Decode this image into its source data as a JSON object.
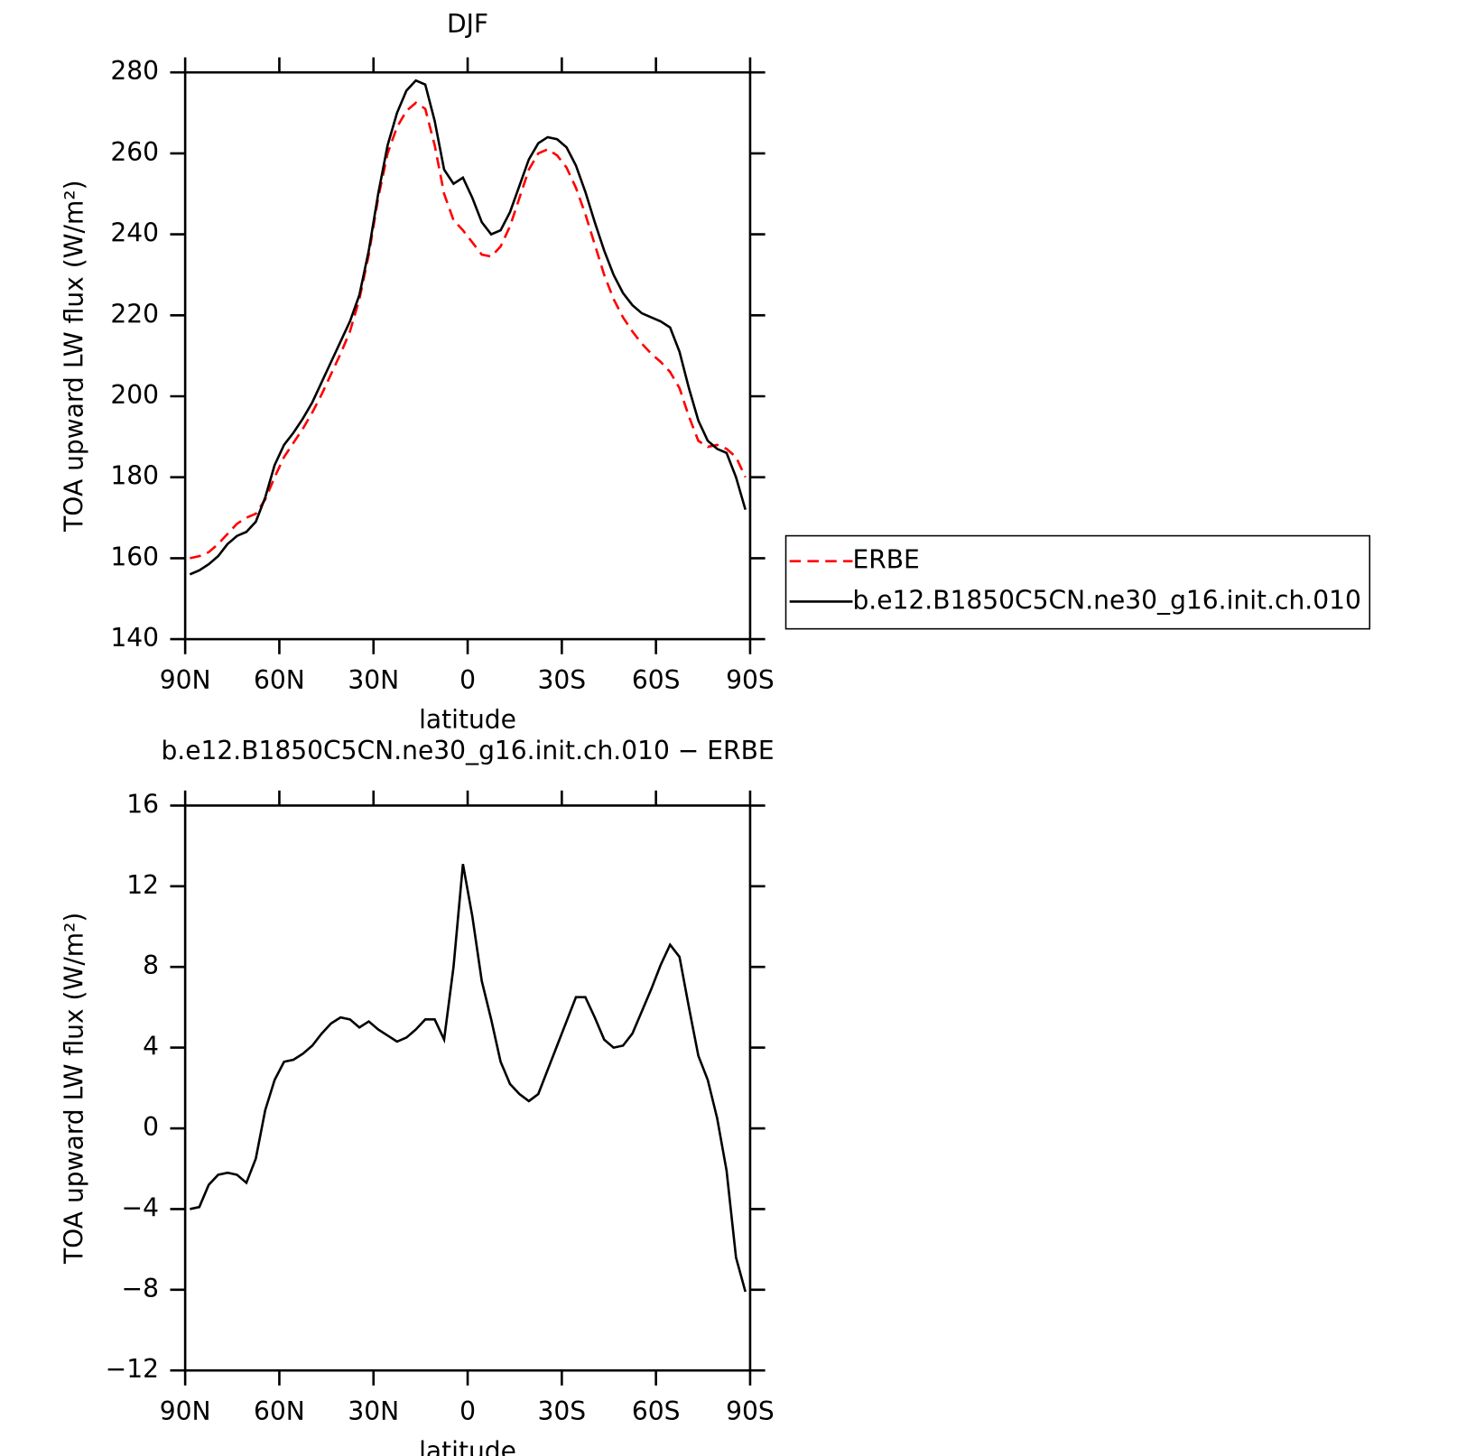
{
  "chart_data": [
    {
      "type": "line",
      "title": "DJF",
      "xlabel": "latitude",
      "ylabel": "TOA upward LW flux (W/m²)",
      "x": [
        88.5,
        85.5,
        82.5,
        79.5,
        76.5,
        73.5,
        70.5,
        67.5,
        64.5,
        61.5,
        58.5,
        55.5,
        52.5,
        49.5,
        46.5,
        43.5,
        40.5,
        37.5,
        34.5,
        31.5,
        28.5,
        25.5,
        22.5,
        19.5,
        16.5,
        13.5,
        10.5,
        7.5,
        4.5,
        1.5,
        -1.5,
        -4.5,
        -7.5,
        -10.5,
        -13.5,
        -16.5,
        -19.5,
        -22.5,
        -25.5,
        -28.5,
        -31.5,
        -34.5,
        -37.5,
        -40.5,
        -43.5,
        -46.5,
        -49.5,
        -52.5,
        -55.5,
        -58.5,
        -61.5,
        -64.5,
        -67.5,
        -70.5,
        -73.5,
        -76.5,
        -79.5,
        -82.5,
        -85.5,
        -88.5
      ],
      "series": [
        {
          "name": "ERBE",
          "color": "#ff0000",
          "linestyle": "dashed",
          "values": [
            160,
            160.5,
            161.5,
            163.5,
            166,
            168.5,
            170,
            171,
            174.5,
            180,
            185,
            188.5,
            192,
            196,
            200.5,
            205.5,
            210.5,
            216,
            224,
            235,
            249,
            260,
            266.5,
            270.5,
            272.5,
            271,
            262,
            250,
            243.5,
            241,
            238,
            235,
            234.5,
            237,
            242,
            249,
            256,
            260,
            261,
            259.5,
            256.5,
            251.5,
            245,
            237.5,
            230,
            224,
            219.5,
            216,
            213,
            210.5,
            208.5,
            206,
            202,
            195,
            189,
            187.5,
            188,
            187,
            185,
            180
          ]
        },
        {
          "name": "b.e12.B1850C5CN.ne30_g16.init.ch.010",
          "color": "#000000",
          "linestyle": "solid",
          "values": [
            156,
            157,
            158.5,
            160.5,
            163.5,
            165.5,
            166.5,
            169,
            175,
            183,
            188,
            191,
            194.5,
            198.5,
            203.5,
            208.5,
            213.5,
            218.5,
            225,
            236,
            250,
            262,
            270,
            275.5,
            278,
            277,
            268,
            256,
            252.5,
            254,
            249,
            243,
            240,
            241,
            245.5,
            252,
            258.5,
            262.5,
            264,
            263.5,
            261.5,
            257,
            250.5,
            243,
            236,
            230,
            225.5,
            222.5,
            220.5,
            219.5,
            218.5,
            217,
            211,
            202,
            194,
            189,
            187,
            186,
            180,
            172
          ]
        }
      ],
      "xlim": [
        90,
        -90
      ],
      "xticks": [
        {
          "value": 90,
          "label": "90N"
        },
        {
          "value": 60,
          "label": "60N"
        },
        {
          "value": 30,
          "label": "30N"
        },
        0,
        {
          "value": -30,
          "label": "30S"
        },
        {
          "value": -60,
          "label": "60S"
        },
        {
          "value": -90,
          "label": "90S"
        }
      ],
      "ylim": [
        140,
        280
      ],
      "yticks": [
        140,
        160,
        180,
        200,
        220,
        240,
        260,
        280
      ],
      "legend": "right"
    },
    {
      "type": "line",
      "title": "b.e12.B1850C5CN.ne30_g16.init.ch.010 − ERBE",
      "xlabel": "latitude",
      "ylabel": "TOA upward LW flux (W/m²)",
      "x": [
        88.5,
        85.5,
        82.5,
        79.5,
        76.5,
        73.5,
        70.5,
        67.5,
        64.5,
        61.5,
        58.5,
        55.5,
        52.5,
        49.5,
        46.5,
        43.5,
        40.5,
        37.5,
        34.5,
        31.5,
        28.5,
        25.5,
        22.5,
        19.5,
        16.5,
        13.5,
        10.5,
        7.5,
        4.5,
        1.5,
        -1.5,
        -4.5,
        -7.5,
        -10.5,
        -13.5,
        -16.5,
        -19.5,
        -22.5,
        -25.5,
        -28.5,
        -31.5,
        -34.5,
        -37.5,
        -40.5,
        -43.5,
        -46.5,
        -49.5,
        -52.5,
        -55.5,
        -58.5,
        -61.5,
        -64.5,
        -67.5,
        -70.5,
        -73.5,
        -76.5,
        -79.5,
        -82.5,
        -85.5,
        -88.5
      ],
      "series": [
        {
          "color": "#000000",
          "linestyle": "solid",
          "values": [
            -4,
            -3.9,
            -2.8,
            -2.3,
            -2.2,
            -2.3,
            -2.7,
            -1.5,
            0.9,
            2.4,
            3.3,
            3.4,
            3.7,
            4.1,
            4.7,
            5.2,
            5.5,
            5.4,
            5.0,
            5.3,
            4.9,
            4.6,
            4.3,
            4.5,
            4.9,
            5.4,
            5.4,
            4.4,
            8.0,
            13.1,
            10.5,
            7.3,
            5.4,
            3.3,
            2.2,
            1.7,
            1.35,
            1.7,
            2.9,
            4.1,
            5.3,
            6.5,
            6.5,
            5.5,
            4.4,
            4.0,
            4.1,
            4.7,
            5.8,
            6.9,
            8.1,
            9.1,
            8.5,
            6.0,
            3.6,
            2.4,
            0.5,
            -2.1,
            -6.4,
            -8.1
          ]
        }
      ],
      "xlim": [
        90,
        -90
      ],
      "xticks": [
        {
          "value": 90,
          "label": "90N"
        },
        {
          "value": 60,
          "label": "60N"
        },
        {
          "value": 30,
          "label": "30N"
        },
        0,
        {
          "value": -30,
          "label": "30S"
        },
        {
          "value": -60,
          "label": "60S"
        },
        {
          "value": -90,
          "label": "90S"
        }
      ],
      "ylim": [
        -12,
        16
      ],
      "yticks": [
        {
          "value": -12,
          "label": "−12"
        },
        {
          "value": -8,
          "label": "−8"
        },
        {
          "value": -4,
          "label": "−4"
        },
        0,
        4,
        8,
        12,
        16
      ]
    }
  ]
}
